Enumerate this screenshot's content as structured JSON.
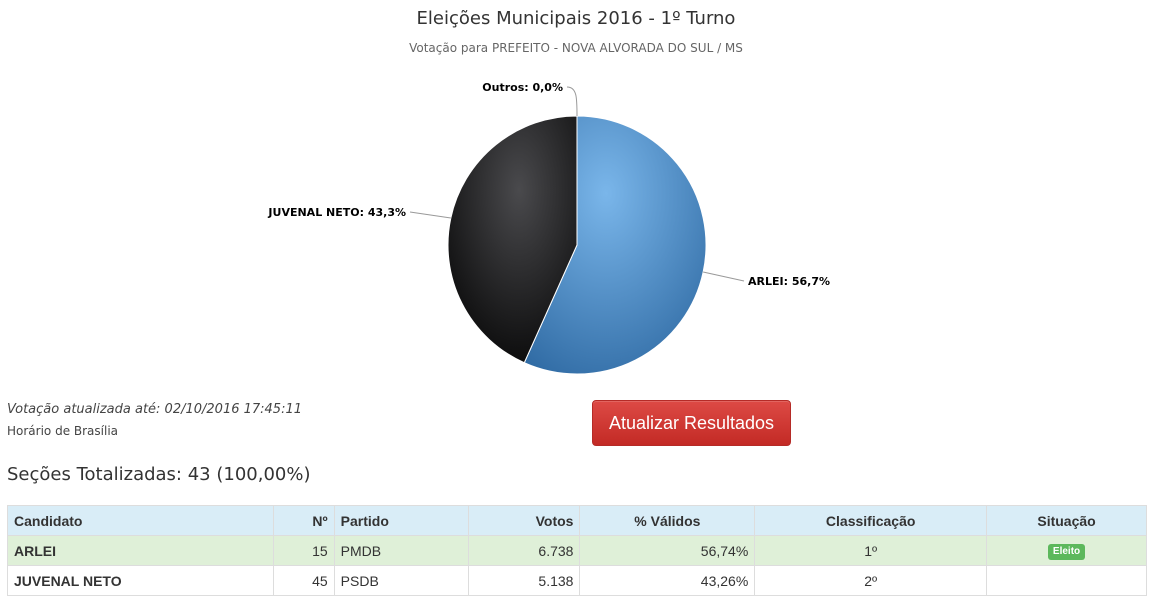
{
  "header": {
    "title": "Eleições Municipais 2016 - 1º Turno",
    "subtitle": "Votação para PREFEITO - NOVA ALVORADA DO SUL / MS"
  },
  "chart_data": {
    "type": "pie",
    "title": "Eleições Municipais 2016 - 1º Turno",
    "subtitle": "Votação para PREFEITO - NOVA ALVORADA DO SUL / MS",
    "slices": [
      {
        "label": "ARLEI",
        "value": 56.7,
        "display": "ARLEI: 56,7%",
        "color": "#4f8fcf"
      },
      {
        "label": "JUVENAL NETO",
        "value": 43.3,
        "display": "JUVENAL NETO: 43,3%",
        "color": "#1b1b1d"
      },
      {
        "label": "Outros",
        "value": 0.0,
        "display": "Outros: 0,0%",
        "color": "#9a9a9a"
      }
    ]
  },
  "status": {
    "updated": "Votação atualizada até: 02/10/2016 17:45:11",
    "timezone": "Horário de Brasília"
  },
  "actions": {
    "refresh_label": "Atualizar Resultados",
    "refresh_color": "#c9302c"
  },
  "summary": {
    "sections": "Seções Totalizadas: 43 (100,00%)"
  },
  "table": {
    "headers": {
      "candidate": "Candidato",
      "number": "Nº",
      "party": "Partido",
      "votes": "Votos",
      "valid_pct": "% Válidos",
      "rank": "Classificação",
      "situation": "Situação"
    },
    "rows": [
      {
        "candidate": "ARLEI",
        "number": "15",
        "party": "PMDB",
        "votes": "6.738",
        "valid_pct": "56,74%",
        "rank": "1º",
        "situation": "Eleito"
      },
      {
        "candidate": "JUVENAL NETO",
        "number": "45",
        "party": "PSDB",
        "votes": "5.138",
        "valid_pct": "43,26%",
        "rank": "2º",
        "situation": ""
      }
    ]
  }
}
